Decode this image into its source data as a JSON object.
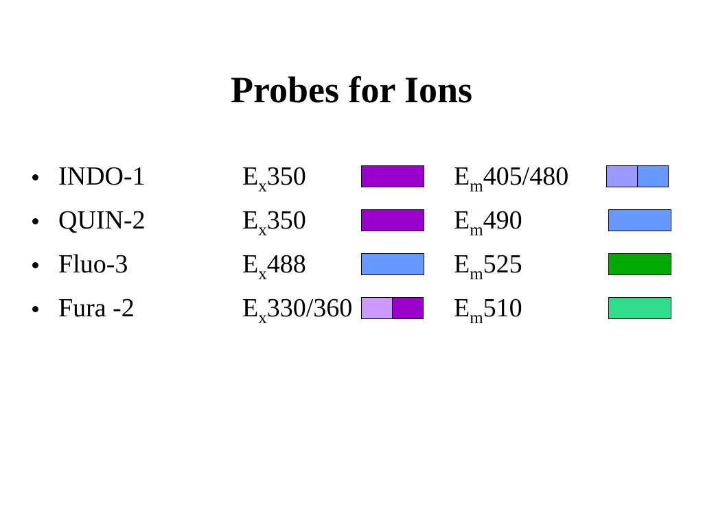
{
  "title": "Probes for Ions",
  "rows": [
    {
      "name": "INDO-1",
      "ex": {
        "letter": "E",
        "sub": "x",
        "value": "350",
        "colors": [
          "#9900cc"
        ]
      },
      "em": {
        "letter": "E",
        "sub": "m",
        "value": "405/480",
        "colors": [
          "#9999ff",
          "#6699ff"
        ]
      }
    },
    {
      "name": "QUIN-2",
      "ex": {
        "letter": "E",
        "sub": "x",
        "value": "350",
        "colors": [
          "#9900cc"
        ]
      },
      "em": {
        "letter": "E",
        "sub": "m",
        "value": "490",
        "colors": [
          "#6699ff"
        ]
      }
    },
    {
      "name": "Fluo-3",
      "ex": {
        "letter": "E",
        "sub": "x",
        "value": "488",
        "colors": [
          "#6699ff"
        ]
      },
      "em": {
        "letter": "E",
        "sub": "m",
        "value": "525",
        "colors": [
          "#00aa00"
        ]
      }
    },
    {
      "name": "Fura -2",
      "ex": {
        "letter": "E",
        "sub": "x",
        "value": "330/360",
        "colors": [
          "#cc99ff",
          "#9900cc"
        ]
      },
      "em": {
        "letter": "E",
        "sub": "m",
        "value": "510",
        "colors": [
          "#2edc8c"
        ]
      }
    }
  ]
}
